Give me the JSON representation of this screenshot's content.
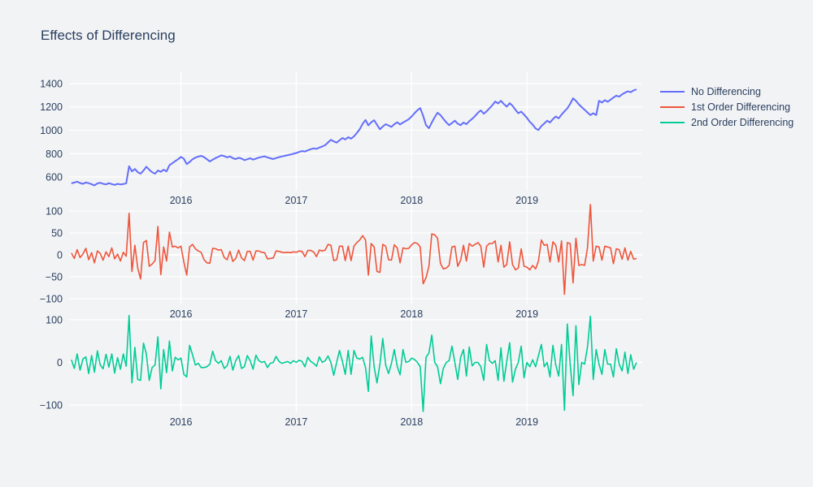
{
  "chart_data": {
    "type": "line",
    "title": "Effects of Differencing",
    "grid": true,
    "legend_position": "right-top",
    "x_axis": {
      "ticks": [
        2016,
        2017,
        2018,
        2019
      ],
      "range": [
        2015.03,
        2020.0
      ]
    },
    "subplots": [
      {
        "name": "No Differencing",
        "color": "#636EFA",
        "y_ticks": [
          600,
          800,
          1000,
          1200,
          1400
        ],
        "y_range": [
          482,
          1504
        ],
        "x_start": 2015.05,
        "x_step": 0.025,
        "values": [
          545,
          552,
          560,
          548,
          541,
          553,
          547,
          538,
          528,
          545,
          550,
          541,
          536,
          547,
          539,
          532,
          541,
          536,
          540,
          545,
          692,
          648,
          668,
          641,
          628,
          655,
          688,
          662,
          641,
          628,
          655,
          644,
          662,
          648,
          700,
          718,
          736,
          752,
          772,
          756,
          710,
          728,
          752,
          766,
          775,
          781,
          770,
          752,
          733,
          748,
          762,
          773,
          785,
          779,
          768,
          776,
          761,
          753,
          764,
          757,
          744,
          752,
          760,
          748,
          757,
          766,
          772,
          777,
          768,
          760,
          753,
          762,
          770,
          776,
          781,
          787,
          792,
          799,
          805,
          814,
          822,
          818,
          828,
          838,
          845,
          841,
          852,
          861,
          872,
          896,
          918,
          905,
          894,
          914,
          934,
          921,
          941,
          928,
          948,
          976,
          1010,
          1054,
          1088,
          1042,
          1068,
          1086,
          1048,
          1008,
          1032,
          1052,
          1041,
          1029,
          1052,
          1068,
          1050,
          1066,
          1080,
          1095,
          1118,
          1146,
          1172,
          1190,
          1124,
          1044,
          1018,
          1066,
          1112,
          1150,
          1130,
          1098,
          1068,
          1044,
          1062,
          1082,
          1056,
          1044,
          1066,
          1052,
          1078,
          1098,
          1122,
          1150,
          1170,
          1142,
          1162,
          1188,
          1214,
          1246,
          1230,
          1252,
          1224,
          1202,
          1232,
          1210,
          1176,
          1146,
          1160,
          1134,
          1106,
          1072,
          1048,
          1016,
          1002,
          1036,
          1058,
          1082,
          1066,
          1096,
          1118,
          1102,
          1134,
          1162,
          1188,
          1226,
          1274,
          1252,
          1222,
          1198,
          1176,
          1152,
          1130,
          1146,
          1130,
          1252,
          1238,
          1258,
          1244,
          1262,
          1280,
          1296,
          1288,
          1308,
          1322,
          1334,
          1326,
          1342,
          1350
        ]
      },
      {
        "name": "1st Order Differencing",
        "color": "#EF553B",
        "y_ticks": [
          -100,
          -50,
          0,
          50,
          100
        ],
        "y_range": [
          -113,
          115
        ],
        "x_start": 2015.05,
        "x_step": 0.025,
        "values": [
          4,
          -8,
          12,
          -6,
          2,
          15,
          -11,
          5,
          -18,
          9,
          3,
          -12,
          7,
          -4,
          16,
          -9,
          2,
          -14,
          6,
          -3,
          95,
          -38,
          22,
          -30,
          -55,
          28,
          33,
          -26,
          -21,
          -13,
          65,
          -45,
          18,
          -14,
          52,
          18,
          20,
          16,
          20,
          -16,
          -46,
          18,
          24,
          14,
          9,
          6,
          -11,
          -18,
          -19,
          15,
          14,
          11,
          12,
          -6,
          -11,
          8,
          -15,
          -8,
          11,
          -7,
          -13,
          8,
          8,
          -12,
          9,
          9,
          6,
          5,
          -9,
          -8,
          -7,
          9,
          8,
          6,
          5,
          6,
          5,
          7,
          6,
          9,
          8,
          -4,
          10,
          10,
          7,
          -4,
          11,
          9,
          11,
          24,
          22,
          -13,
          -11,
          20,
          20,
          -13,
          20,
          -13,
          20,
          28,
          34,
          44,
          34,
          -46,
          26,
          18,
          -38,
          -40,
          24,
          20,
          -11,
          -12,
          23,
          16,
          -18,
          16,
          14,
          15,
          23,
          28,
          26,
          18,
          -66,
          -52,
          -26,
          48,
          46,
          38,
          -20,
          -32,
          -30,
          -24,
          18,
          20,
          -26,
          -12,
          22,
          -14,
          26,
          20,
          24,
          28,
          20,
          -28,
          20,
          26,
          26,
          32,
          -16,
          22,
          -28,
          -22,
          30,
          -22,
          -34,
          -30,
          14,
          -26,
          -28,
          -34,
          -24,
          -32,
          -14,
          34,
          22,
          24,
          -16,
          30,
          22,
          -16,
          32,
          -90,
          28,
          26,
          -64,
          38,
          -24,
          -22,
          -24,
          16,
          115,
          -14,
          20,
          18,
          -12,
          20,
          18,
          16,
          -20,
          14,
          12,
          -10,
          16,
          -12,
          8,
          -10,
          -8
        ]
      },
      {
        "name": "2nd Order Differencing",
        "color": "#00CC96",
        "y_ticks": [
          -100,
          0,
          100
        ],
        "y_range": [
          -117,
          117
        ],
        "x_start": 2015.05,
        "x_step": 0.025,
        "values": [
          6,
          -14,
          20,
          -18,
          8,
          13,
          -26,
          16,
          -23,
          27,
          -6,
          -15,
          19,
          -11,
          20,
          -25,
          11,
          -16,
          20,
          -9,
          110,
          -48,
          35,
          -40,
          -42,
          45,
          20,
          -42,
          -12,
          -6,
          60,
          -62,
          30,
          -24,
          50,
          -20,
          12,
          6,
          10,
          -28,
          -34,
          40,
          18,
          -6,
          -2,
          -12,
          -12,
          -10,
          -4,
          26,
          4,
          -2,
          4,
          -14,
          -8,
          14,
          -18,
          4,
          16,
          -14,
          -10,
          16,
          4,
          -16,
          17,
          4,
          0,
          2,
          -12,
          -2,
          0,
          14,
          2,
          -2,
          0,
          2,
          -2,
          4,
          0,
          5,
          2,
          -10,
          12,
          2,
          -2,
          -9,
          13,
          0,
          4,
          15,
          0,
          -30,
          0,
          28,
          2,
          -28,
          28,
          -28,
          28,
          10,
          8,
          12,
          -12,
          -68,
          62,
          -10,
          -48,
          -4,
          56,
          -6,
          -26,
          -2,
          30,
          -9,
          -29,
          30,
          0,
          2,
          10,
          7,
          0,
          -10,
          -115,
          12,
          22,
          64,
          0,
          -10,
          -50,
          -14,
          0,
          4,
          38,
          0,
          -40,
          12,
          30,
          -32,
          36,
          -8,
          0,
          0,
          -10,
          -42,
          42,
          4,
          -2,
          4,
          -42,
          34,
          -44,
          2,
          46,
          -46,
          -16,
          0,
          38,
          -36,
          0,
          -10,
          6,
          -10,
          16,
          42,
          -10,
          0,
          -34,
          40,
          -6,
          -32,
          42,
          -112,
          90,
          -4,
          -78,
          86,
          -52,
          0,
          -4,
          36,
          108,
          -40,
          30,
          -4,
          -28,
          30,
          -4,
          -4,
          -34,
          32,
          -4,
          -20,
          24,
          -26,
          18,
          -16,
          0
        ]
      }
    ]
  }
}
